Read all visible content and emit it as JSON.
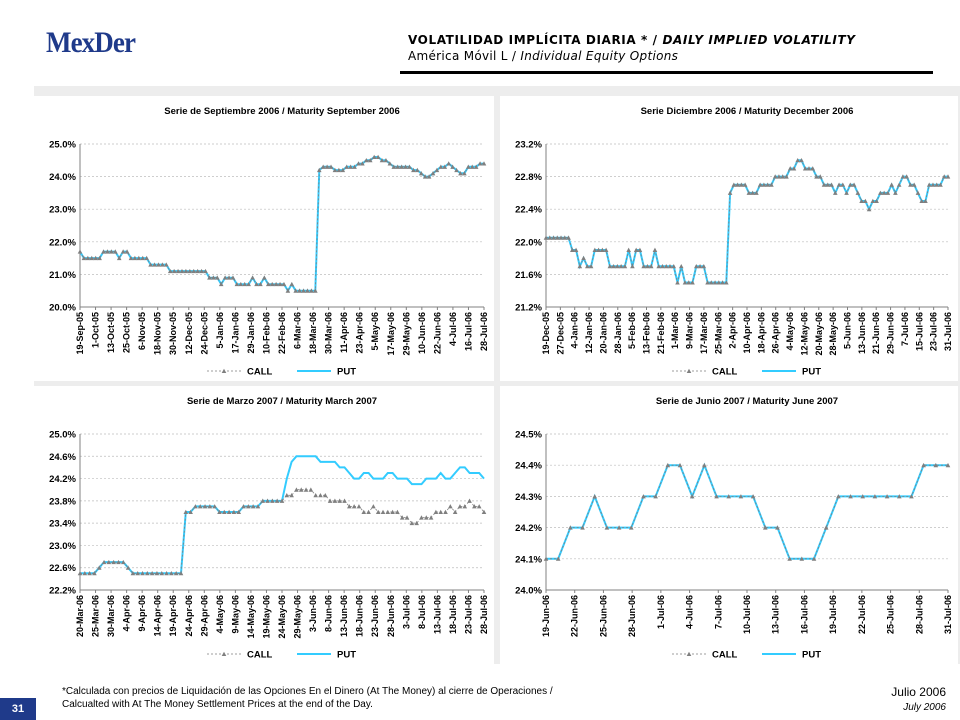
{
  "header": {
    "logo": "MexDer",
    "title_es": "VOLATILIDAD IMPLÍCITA DIARIA * /",
    "title_en": "DAILY IMPLIED VOLATILITY",
    "subtitle_es": "América Móvil L /",
    "subtitle_en": "Individual Equity Options"
  },
  "footer": {
    "page_number": "31",
    "note_line1": "*Calculada con precios de Liquidación de las Opciones En el Dinero (At The Money) al cierre de Operaciones /",
    "note_line2": "Calcualted with At The Money Settlement Prices at the end of the Day.",
    "date_es": "Julio 2006",
    "date_en": "July 2006"
  },
  "colors": {
    "call": "#7f7f7f",
    "put": "#33ccff",
    "brand": "#1f3a8a",
    "panel_bg": "#ededed"
  },
  "chart_data": [
    {
      "type": "line",
      "title": "Serie de Septiembre 2006 / Maturity September 2006",
      "ylim": [
        20.0,
        25.0
      ],
      "yticks": [
        "20.0%",
        "21.0%",
        "22.0%",
        "23.0%",
        "24.0%",
        "25.0%"
      ],
      "ytick_values": [
        20.0,
        21.0,
        22.0,
        23.0,
        24.0,
        25.0
      ],
      "ytick_decimals": 1,
      "xticks": [
        "19-Sep-05",
        "1-Oct-05",
        "13-Oct-05",
        "25-Oct-05",
        "6-Nov-05",
        "18-Nov-05",
        "30-Nov-05",
        "12-Dec-05",
        "24-Dec-05",
        "5-Jan-06",
        "17-Jan-06",
        "29-Jan-06",
        "10-Feb-06",
        "22-Feb-06",
        "6-Mar-06",
        "18-Mar-06",
        "30-Mar-06",
        "11-Apr-06",
        "23-Apr-06",
        "5-May-06",
        "17-May-06",
        "29-May-06",
        "10-Jun-06",
        "22-Jun-06",
        "4-Jul-06",
        "16-Jul-06",
        "28-Jul-06"
      ],
      "series": [
        {
          "name": "CALL",
          "values": [
            21.7,
            21.5,
            21.5,
            21.5,
            21.5,
            21.5,
            21.7,
            21.7,
            21.7,
            21.7,
            21.5,
            21.7,
            21.7,
            21.5,
            21.5,
            21.5,
            21.5,
            21.5,
            21.3,
            21.3,
            21.3,
            21.3,
            21.3,
            21.1,
            21.1,
            21.1,
            21.1,
            21.1,
            21.1,
            21.1,
            21.1,
            21.1,
            21.1,
            20.9,
            20.9,
            20.9,
            20.7,
            20.9,
            20.9,
            20.9,
            20.7,
            20.7,
            20.7,
            20.7,
            20.9,
            20.7,
            20.7,
            20.9,
            20.7,
            20.7,
            20.7,
            20.7,
            20.7,
            20.5,
            20.7,
            20.5,
            20.5,
            20.5,
            20.5,
            20.5,
            20.5,
            24.2,
            24.3,
            24.3,
            24.3,
            24.2,
            24.2,
            24.2,
            24.3,
            24.3,
            24.3,
            24.4,
            24.4,
            24.5,
            24.5,
            24.6,
            24.6,
            24.5,
            24.5,
            24.4,
            24.3,
            24.3,
            24.3,
            24.3,
            24.3,
            24.2,
            24.2,
            24.1,
            24.0,
            24.0,
            24.1,
            24.2,
            24.3,
            24.3,
            24.4,
            24.3,
            24.2,
            24.1,
            24.1,
            24.3,
            24.3,
            24.3,
            24.4,
            24.4
          ]
        },
        {
          "name": "PUT",
          "values": [
            21.7,
            21.5,
            21.5,
            21.5,
            21.5,
            21.5,
            21.7,
            21.7,
            21.7,
            21.7,
            21.5,
            21.7,
            21.7,
            21.5,
            21.5,
            21.5,
            21.5,
            21.5,
            21.3,
            21.3,
            21.3,
            21.3,
            21.3,
            21.1,
            21.1,
            21.1,
            21.1,
            21.1,
            21.1,
            21.1,
            21.1,
            21.1,
            21.1,
            20.9,
            20.9,
            20.9,
            20.7,
            20.9,
            20.9,
            20.9,
            20.7,
            20.7,
            20.7,
            20.7,
            20.9,
            20.7,
            20.7,
            20.9,
            20.7,
            20.7,
            20.7,
            20.7,
            20.7,
            20.5,
            20.7,
            20.5,
            20.5,
            20.5,
            20.5,
            20.5,
            20.5,
            24.2,
            24.3,
            24.3,
            24.3,
            24.2,
            24.2,
            24.2,
            24.3,
            24.3,
            24.3,
            24.4,
            24.4,
            24.5,
            24.5,
            24.6,
            24.6,
            24.5,
            24.5,
            24.4,
            24.3,
            24.3,
            24.3,
            24.3,
            24.3,
            24.2,
            24.2,
            24.1,
            24.0,
            24.0,
            24.1,
            24.2,
            24.3,
            24.3,
            24.4,
            24.3,
            24.2,
            24.1,
            24.1,
            24.3,
            24.3,
            24.3,
            24.4,
            24.4
          ]
        }
      ],
      "legend": [
        "CALL",
        "PUT"
      ],
      "grid": true
    },
    {
      "type": "line",
      "title": "Serie Diciembre 2006 / Maturity December 2006",
      "ylim": [
        21.2,
        23.2
      ],
      "yticks": [
        "21.2%",
        "21.6%",
        "22.0%",
        "22.4%",
        "22.8%",
        "23.2%"
      ],
      "ytick_values": [
        21.2,
        21.6,
        22.0,
        22.4,
        22.8,
        23.2
      ],
      "ytick_decimals": 1,
      "xticks": [
        "19-Dec-05",
        "27-Dec-05",
        "4-Jan-06",
        "12-Jan-06",
        "20-Jan-06",
        "28-Jan-06",
        "5-Feb-06",
        "13-Feb-06",
        "21-Feb-06",
        "1-Mar-06",
        "9-Mar-06",
        "17-Mar-06",
        "25-Mar-06",
        "2-Apr-06",
        "10-Apr-06",
        "18-Apr-06",
        "26-Apr-06",
        "4-May-06",
        "12-May-06",
        "20-May-06",
        "28-May-06",
        "5-Jun-06",
        "13-Jun-06",
        "21-Jun-06",
        "29-Jun-06",
        "7-Jul-06",
        "15-Jul-06",
        "23-Jul-06",
        "31-Jul-06"
      ],
      "series": [
        {
          "name": "CALL",
          "values": [
            22.05,
            22.05,
            22.05,
            22.05,
            22.05,
            22.05,
            22.05,
            21.9,
            21.9,
            21.7,
            21.8,
            21.7,
            21.7,
            21.9,
            21.9,
            21.9,
            21.9,
            21.7,
            21.7,
            21.7,
            21.7,
            21.7,
            21.9,
            21.7,
            21.9,
            21.9,
            21.7,
            21.7,
            21.7,
            21.9,
            21.7,
            21.7,
            21.7,
            21.7,
            21.7,
            21.5,
            21.7,
            21.5,
            21.5,
            21.5,
            21.7,
            21.7,
            21.7,
            21.5,
            21.5,
            21.5,
            21.5,
            21.5,
            21.5,
            22.6,
            22.7,
            22.7,
            22.7,
            22.7,
            22.6,
            22.6,
            22.6,
            22.7,
            22.7,
            22.7,
            22.7,
            22.8,
            22.8,
            22.8,
            22.8,
            22.9,
            22.9,
            23.0,
            23.0,
            22.9,
            22.9,
            22.9,
            22.8,
            22.8,
            22.7,
            22.7,
            22.7,
            22.6,
            22.7,
            22.7,
            22.6,
            22.7,
            22.7,
            22.6,
            22.5,
            22.5,
            22.4,
            22.5,
            22.5,
            22.6,
            22.6,
            22.6,
            22.7,
            22.6,
            22.7,
            22.8,
            22.8,
            22.7,
            22.7,
            22.6,
            22.5,
            22.5,
            22.7,
            22.7,
            22.7,
            22.7,
            22.8,
            22.8
          ]
        },
        {
          "name": "PUT",
          "values": [
            22.05,
            22.05,
            22.05,
            22.05,
            22.05,
            22.05,
            22.05,
            21.9,
            21.9,
            21.7,
            21.8,
            21.7,
            21.7,
            21.9,
            21.9,
            21.9,
            21.9,
            21.7,
            21.7,
            21.7,
            21.7,
            21.7,
            21.9,
            21.7,
            21.9,
            21.9,
            21.7,
            21.7,
            21.7,
            21.9,
            21.7,
            21.7,
            21.7,
            21.7,
            21.7,
            21.5,
            21.7,
            21.5,
            21.5,
            21.5,
            21.7,
            21.7,
            21.7,
            21.5,
            21.5,
            21.5,
            21.5,
            21.5,
            21.5,
            22.6,
            22.7,
            22.7,
            22.7,
            22.7,
            22.6,
            22.6,
            22.6,
            22.7,
            22.7,
            22.7,
            22.7,
            22.8,
            22.8,
            22.8,
            22.8,
            22.9,
            22.9,
            23.0,
            23.0,
            22.9,
            22.9,
            22.9,
            22.8,
            22.8,
            22.7,
            22.7,
            22.7,
            22.6,
            22.7,
            22.7,
            22.6,
            22.7,
            22.7,
            22.6,
            22.5,
            22.5,
            22.4,
            22.5,
            22.5,
            22.6,
            22.6,
            22.6,
            22.7,
            22.6,
            22.7,
            22.8,
            22.8,
            22.7,
            22.7,
            22.6,
            22.5,
            22.5,
            22.7,
            22.7,
            22.7,
            22.7,
            22.8,
            22.8
          ]
        }
      ],
      "legend": [
        "CALL",
        "PUT"
      ],
      "grid": true
    },
    {
      "type": "line",
      "title": "Serie de Marzo 2007 / Maturity March 2007",
      "ylim": [
        22.2,
        25.0
      ],
      "yticks": [
        "22.2%",
        "22.6%",
        "23.0%",
        "23.4%",
        "23.8%",
        "24.2%",
        "24.6%",
        "25.0%"
      ],
      "ytick_values": [
        22.2,
        22.6,
        23.0,
        23.4,
        23.8,
        24.2,
        24.6,
        25.0
      ],
      "ytick_decimals": 1,
      "xticks": [
        "20-Mar-06",
        "25-Mar-06",
        "30-Mar-06",
        "4-Apr-06",
        "9-Apr-06",
        "14-Apr-06",
        "19-Apr-06",
        "24-Apr-06",
        "29-Apr-06",
        "4-May-06",
        "9-May-06",
        "14-May-06",
        "19-May-06",
        "24-May-06",
        "29-May-06",
        "3-Jun-06",
        "8-Jun-06",
        "13-Jun-06",
        "18-Jun-06",
        "23-Jun-06",
        "28-Jun-06",
        "3-Jul-06",
        "8-Jul-06",
        "13-Jul-06",
        "18-Jul-06",
        "23-Jul-06",
        "28-Jul-06"
      ],
      "series": [
        {
          "name": "CALL",
          "values": [
            22.5,
            22.5,
            22.5,
            22.5,
            22.6,
            22.7,
            22.7,
            22.7,
            22.7,
            22.7,
            22.6,
            22.5,
            22.5,
            22.5,
            22.5,
            22.5,
            22.5,
            22.5,
            22.5,
            22.5,
            22.5,
            22.5,
            23.6,
            23.6,
            23.7,
            23.7,
            23.7,
            23.7,
            23.7,
            23.6,
            23.6,
            23.6,
            23.6,
            23.6,
            23.7,
            23.7,
            23.7,
            23.7,
            23.8,
            23.8,
            23.8,
            23.8,
            23.8,
            23.9,
            23.9,
            24.0,
            24.0,
            24.0,
            24.0,
            23.9,
            23.9,
            23.9,
            23.8,
            23.8,
            23.8,
            23.8,
            23.7,
            23.7,
            23.7,
            23.6,
            23.6,
            23.7,
            23.6,
            23.6,
            23.6,
            23.6,
            23.6,
            23.5,
            23.5,
            23.4,
            23.4,
            23.5,
            23.5,
            23.5,
            23.6,
            23.6,
            23.6,
            23.7,
            23.6,
            23.7,
            23.7,
            23.8,
            23.7,
            23.7,
            23.6
          ]
        },
        {
          "name": "PUT",
          "values": [
            22.5,
            22.5,
            22.5,
            22.5,
            22.6,
            22.7,
            22.7,
            22.7,
            22.7,
            22.7,
            22.6,
            22.5,
            22.5,
            22.5,
            22.5,
            22.5,
            22.5,
            22.5,
            22.5,
            22.5,
            22.5,
            22.5,
            23.6,
            23.6,
            23.7,
            23.7,
            23.7,
            23.7,
            23.7,
            23.6,
            23.6,
            23.6,
            23.6,
            23.6,
            23.7,
            23.7,
            23.7,
            23.7,
            23.8,
            23.8,
            23.8,
            23.8,
            23.8,
            24.2,
            24.5,
            24.6,
            24.6,
            24.6,
            24.6,
            24.6,
            24.5,
            24.5,
            24.5,
            24.5,
            24.4,
            24.4,
            24.3,
            24.2,
            24.2,
            24.3,
            24.3,
            24.2,
            24.2,
            24.2,
            24.3,
            24.3,
            24.2,
            24.2,
            24.2,
            24.1,
            24.1,
            24.1,
            24.2,
            24.2,
            24.2,
            24.3,
            24.2,
            24.2,
            24.3,
            24.4,
            24.4,
            24.3,
            24.3,
            24.3,
            24.2
          ]
        }
      ],
      "legend": [
        "CALL",
        "PUT"
      ],
      "grid": true
    },
    {
      "type": "line",
      "title": "Serie de Junio 2007 / Maturity June 2007",
      "ylim": [
        24.0,
        24.5
      ],
      "yticks": [
        "24.0%",
        "24.1%",
        "24.2%",
        "24.3%",
        "24.4%",
        "24.5%"
      ],
      "ytick_values": [
        24.0,
        24.1,
        24.2,
        24.3,
        24.4,
        24.5
      ],
      "ytick_decimals": 1,
      "xticks": [
        "19-Jun-06",
        "22-Jun-06",
        "25-Jun-06",
        "28-Jun-06",
        "1-Jul-06",
        "4-Jul-06",
        "7-Jul-06",
        "10-Jul-06",
        "13-Jul-06",
        "16-Jul-06",
        "19-Jul-06",
        "22-Jul-06",
        "25-Jul-06",
        "28-Jul-06",
        "31-Jul-06"
      ],
      "series": [
        {
          "name": "CALL",
          "values": [
            24.1,
            24.1,
            24.2,
            24.2,
            24.3,
            24.2,
            24.2,
            24.2,
            24.3,
            24.3,
            24.4,
            24.4,
            24.3,
            24.4,
            24.3,
            24.3,
            24.3,
            24.3,
            24.2,
            24.2,
            24.1,
            24.1,
            24.1,
            24.2,
            24.3,
            24.3,
            24.3,
            24.3,
            24.3,
            24.3,
            24.3,
            24.4,
            24.4,
            24.4
          ]
        },
        {
          "name": "PUT",
          "values": [
            24.1,
            24.1,
            24.2,
            24.2,
            24.3,
            24.2,
            24.2,
            24.2,
            24.3,
            24.3,
            24.4,
            24.4,
            24.3,
            24.4,
            24.3,
            24.3,
            24.3,
            24.3,
            24.2,
            24.2,
            24.1,
            24.1,
            24.1,
            24.2,
            24.3,
            24.3,
            24.3,
            24.3,
            24.3,
            24.3,
            24.3,
            24.4,
            24.4,
            24.4
          ]
        }
      ],
      "legend": [
        "CALL",
        "PUT"
      ],
      "grid": true
    }
  ]
}
